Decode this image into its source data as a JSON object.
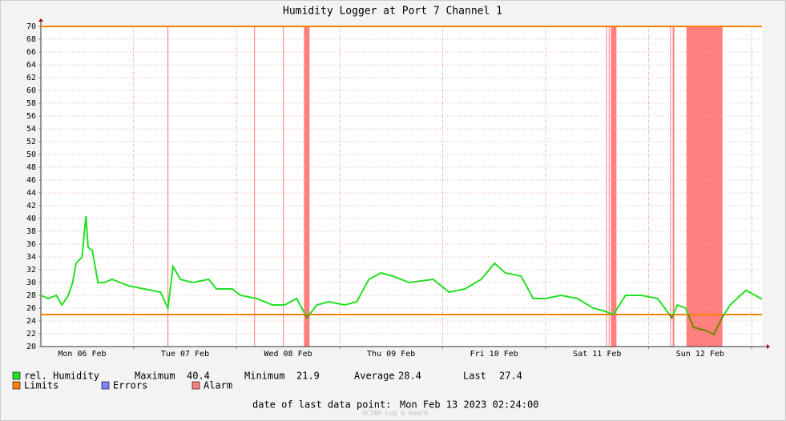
{
  "chart_data": {
    "type": "line",
    "title": "Humidity Logger at Port 7 Channel 1",
    "xlim": [
      2.4,
      170.4
    ],
    "xticks": [
      {
        "value": 12,
        "label": "Mon 06 Feb"
      },
      {
        "value": 36,
        "label": "Tue 07 Feb"
      },
      {
        "value": 60,
        "label": "Wed 08 Feb"
      },
      {
        "value": 84,
        "label": "Thu 09 Feb"
      },
      {
        "value": 108,
        "label": "Fri 10 Feb"
      },
      {
        "value": 132,
        "label": "Sat 11 Feb"
      },
      {
        "value": 156,
        "label": "Sun 12 Feb"
      }
    ],
    "xgrid": [
      24,
      48,
      72,
      96,
      120,
      144,
      168
    ],
    "ylim": [
      20,
      70
    ],
    "yticks": [
      20,
      22,
      24,
      26,
      28,
      30,
      32,
      34,
      36,
      38,
      40,
      42,
      44,
      46,
      48,
      50,
      52,
      54,
      56,
      58,
      60,
      62,
      64,
      66,
      68,
      70
    ],
    "grid": true,
    "series": [
      {
        "name": "rel. Humidity",
        "color": "#22e022",
        "alarm_color": "#808000",
        "x": [
          2.4,
          4.1,
          6,
          7.3,
          8.8,
          9.8,
          10.6,
          12,
          12.9,
          13.4,
          14.4,
          15.7,
          17.2,
          19,
          20.9,
          22.8,
          26.5,
          30.3,
          32,
          33.2,
          34.9,
          37.7,
          41.5,
          43.3,
          47,
          48.9,
          52.7,
          56.4,
          59.2,
          62,
          64.4,
          66.7,
          69.5,
          73.2,
          76,
          78.8,
          81.6,
          84.4,
          88.2,
          93.8,
          97.5,
          101.2,
          105,
          108.1,
          110.6,
          114.3,
          117.1,
          119.9,
          123.6,
          127.4,
          131.1,
          133.9,
          135.8,
          138.6,
          142.3,
          146.1,
          149.4,
          150.7,
          152.6,
          154.5,
          157.3,
          159.2,
          161.1,
          163,
          166.7,
          170.4
        ],
        "values": [
          28,
          27.5,
          28,
          26.5,
          28,
          30,
          33,
          34,
          40.4,
          35.5,
          35,
          30,
          30,
          30.5,
          30,
          29.5,
          29,
          28.5,
          26,
          32.5,
          30.5,
          30,
          30.5,
          29,
          29,
          28,
          27.5,
          26.5,
          26.5,
          27.5,
          24.5,
          26.5,
          27,
          26.5,
          27,
          30.5,
          31.5,
          31,
          30,
          30.5,
          28.5,
          29,
          30.5,
          33,
          31.5,
          31,
          27.5,
          27.5,
          28,
          27.5,
          26,
          25.5,
          25,
          28,
          28,
          27.5,
          24.5,
          26.5,
          26,
          23,
          22.5,
          21.9,
          24.5,
          26.5,
          28.8,
          27.4
        ]
      }
    ],
    "limits": {
      "name": "Limits",
      "color": "#ff7f00",
      "values": [
        70,
        25
      ]
    },
    "errors": {
      "name": "Errors",
      "color": "#7f7fff"
    },
    "alarm": {
      "name": "Alarm",
      "color": "#ff7f7f",
      "ranges": [
        [
          31.9,
          32.1
        ],
        [
          52.1,
          52.3
        ],
        [
          58.8,
          59.0
        ],
        [
          63.7,
          65.0
        ],
        [
          134.1,
          134.3
        ],
        [
          134.7,
          134.9
        ],
        [
          135.2,
          136.5
        ],
        [
          149.0,
          149.2
        ],
        [
          149.6,
          150.0
        ],
        [
          152.8,
          161.2
        ]
      ]
    },
    "stats": [
      {
        "label": "Maximum",
        "value": 40.4
      },
      {
        "label": "Minimum",
        "value": 21.9
      },
      {
        "label": "Average",
        "value": 28.4
      },
      {
        "label": "Last",
        "value": 27.4
      }
    ],
    "footer": {
      "label": "date of last data point:",
      "value": "Mon Feb 13 2023 02:24:00"
    },
    "watermark": "OCTA® Log & Guard"
  }
}
